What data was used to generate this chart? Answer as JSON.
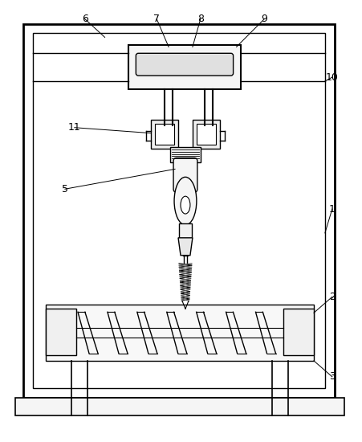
{
  "bg_color": "#ffffff",
  "line_color": "#000000",
  "fig_width": 4.51,
  "fig_height": 5.5,
  "dpi": 100
}
